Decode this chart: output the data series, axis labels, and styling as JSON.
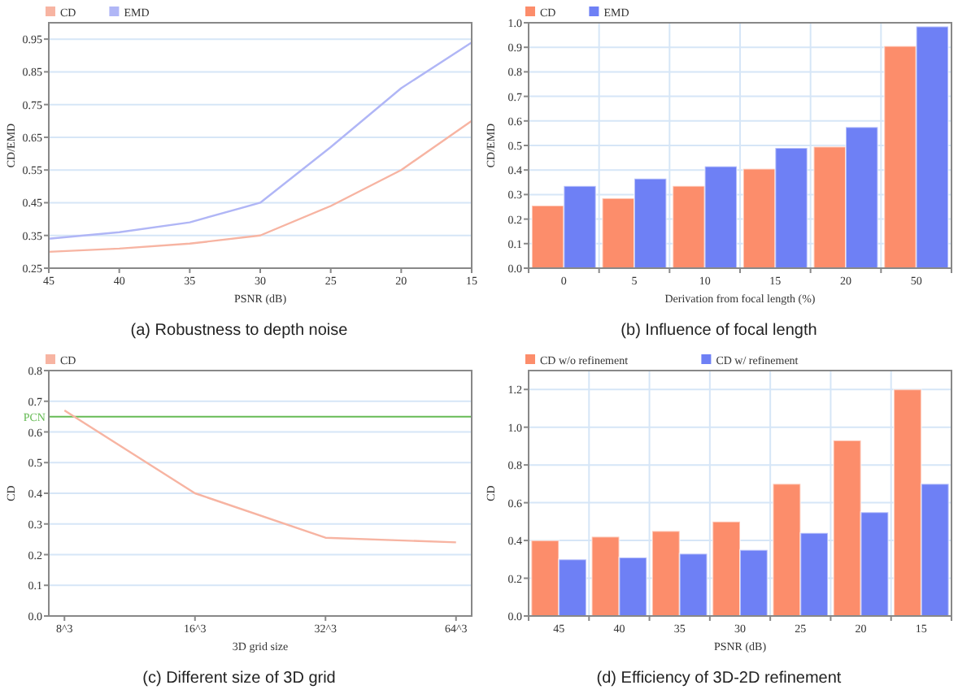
{
  "chart_data": [
    {
      "type": "line",
      "title": "(a) Robustness to depth noise",
      "xlabel": "PSNR (dB)",
      "ylabel": "CD/EMD",
      "categories": [
        "45",
        "40",
        "35",
        "30",
        "25",
        "20",
        "15"
      ],
      "series": [
        {
          "name": "CD",
          "color": "#f7b4a2",
          "values": [
            0.3,
            0.31,
            0.325,
            0.35,
            0.44,
            0.55,
            0.7
          ]
        },
        {
          "name": "EMD",
          "color": "#b0b6f6",
          "values": [
            0.34,
            0.36,
            0.39,
            0.45,
            0.62,
            0.8,
            0.94
          ]
        }
      ],
      "ylim": [
        0.25,
        1.0
      ],
      "yticks": [
        {
          "value": 0.25,
          "label": "0.25"
        },
        {
          "value": 0.35,
          "label": "0.35"
        },
        {
          "value": 0.45,
          "label": "0.45"
        },
        {
          "value": 0.55,
          "label": "0.55"
        },
        {
          "value": 0.65,
          "label": "0.65"
        },
        {
          "value": 0.75,
          "label": "0.75"
        },
        {
          "value": 0.85,
          "label": "0.85"
        },
        {
          "value": 0.95,
          "label": "0.95"
        }
      ],
      "grid": "y",
      "legend": "top left",
      "marker": "none"
    },
    {
      "type": "bar",
      "title": "(b) Influence of focal length",
      "xlabel": "Derivation from focal length (%)",
      "ylabel": "CD/EMD",
      "categories": [
        "0",
        "5",
        "10",
        "15",
        "20",
        "50"
      ],
      "series": [
        {
          "name": "CD",
          "color": "#fc8d6b",
          "values": [
            0.255,
            0.285,
            0.335,
            0.405,
            0.495,
            0.905
          ]
        },
        {
          "name": "EMD",
          "color": "#6e80f5",
          "values": [
            0.335,
            0.365,
            0.415,
            0.49,
            0.575,
            0.985
          ]
        }
      ],
      "ylim": [
        0,
        1.0
      ],
      "yticks": [
        {
          "value": 0,
          "label": "0.0"
        },
        {
          "value": 0.1,
          "label": "0.1"
        },
        {
          "value": 0.2,
          "label": "0.2"
        },
        {
          "value": 0.3,
          "label": "0.3"
        },
        {
          "value": 0.4,
          "label": "0.4"
        },
        {
          "value": 0.5,
          "label": "0.5"
        },
        {
          "value": 0.6,
          "label": "0.6"
        },
        {
          "value": 0.7,
          "label": "0.7"
        },
        {
          "value": 0.8,
          "label": "0.8"
        },
        {
          "value": 0.9,
          "label": "0.9"
        },
        {
          "value": 1.0,
          "label": "1.0"
        }
      ],
      "grid": true,
      "legend": "top left"
    },
    {
      "type": "line",
      "title": "(c) Different size of 3D grid",
      "xlabel": "3D grid size",
      "ylabel": "CD",
      "categories": [
        "8^3",
        "16^3",
        "32^3",
        "64^3"
      ],
      "series": [
        {
          "name": "CD",
          "color": "#f7b4a2",
          "values": [
            0.67,
            0.4,
            0.255,
            0.24
          ]
        }
      ],
      "ylim": [
        0,
        0.8
      ],
      "yticks": [
        {
          "value": 0,
          "label": "0.0"
        },
        {
          "value": 0.1,
          "label": "0.1"
        },
        {
          "value": 0.2,
          "label": "0.2"
        },
        {
          "value": 0.3,
          "label": "0.3"
        },
        {
          "value": 0.4,
          "label": "0.4"
        },
        {
          "value": 0.5,
          "label": "0.5"
        },
        {
          "value": 0.6,
          "label": "0.6"
        },
        {
          "value": 0.7,
          "label": "0.7"
        },
        {
          "value": 0.8,
          "label": "0.8"
        }
      ],
      "ref_lines": [
        {
          "axis": "y",
          "value": 0.65,
          "label": "PCN",
          "color": "#66bb55"
        }
      ],
      "grid": "y",
      "legend": "top left",
      "marker": "none"
    },
    {
      "type": "bar",
      "title": "(d) Efficiency of 3D-2D refinement",
      "xlabel": "PSNR (dB)",
      "ylabel": "CD",
      "categories": [
        "45",
        "40",
        "35",
        "30",
        "25",
        "20",
        "15"
      ],
      "series": [
        {
          "name": "CD w/o refinement",
          "color": "#fc8d6b",
          "values": [
            0.4,
            0.42,
            0.45,
            0.5,
            0.7,
            0.93,
            1.2
          ]
        },
        {
          "name": "CD w/ refinement",
          "color": "#6e80f5",
          "values": [
            0.3,
            0.31,
            0.33,
            0.35,
            0.44,
            0.55,
            0.7
          ]
        }
      ],
      "ylim": [
        0,
        1.3
      ],
      "yticks": [
        {
          "value": 0,
          "label": "0.0"
        },
        {
          "value": 0.2,
          "label": "0.2"
        },
        {
          "value": 0.4,
          "label": "0.4"
        },
        {
          "value": 0.6,
          "label": "0.6"
        },
        {
          "value": 0.8,
          "label": "0.8"
        },
        {
          "value": 1.0,
          "label": "1.0"
        },
        {
          "value": 1.2,
          "label": "1.2"
        }
      ],
      "grid": true,
      "legend": "top left"
    }
  ]
}
